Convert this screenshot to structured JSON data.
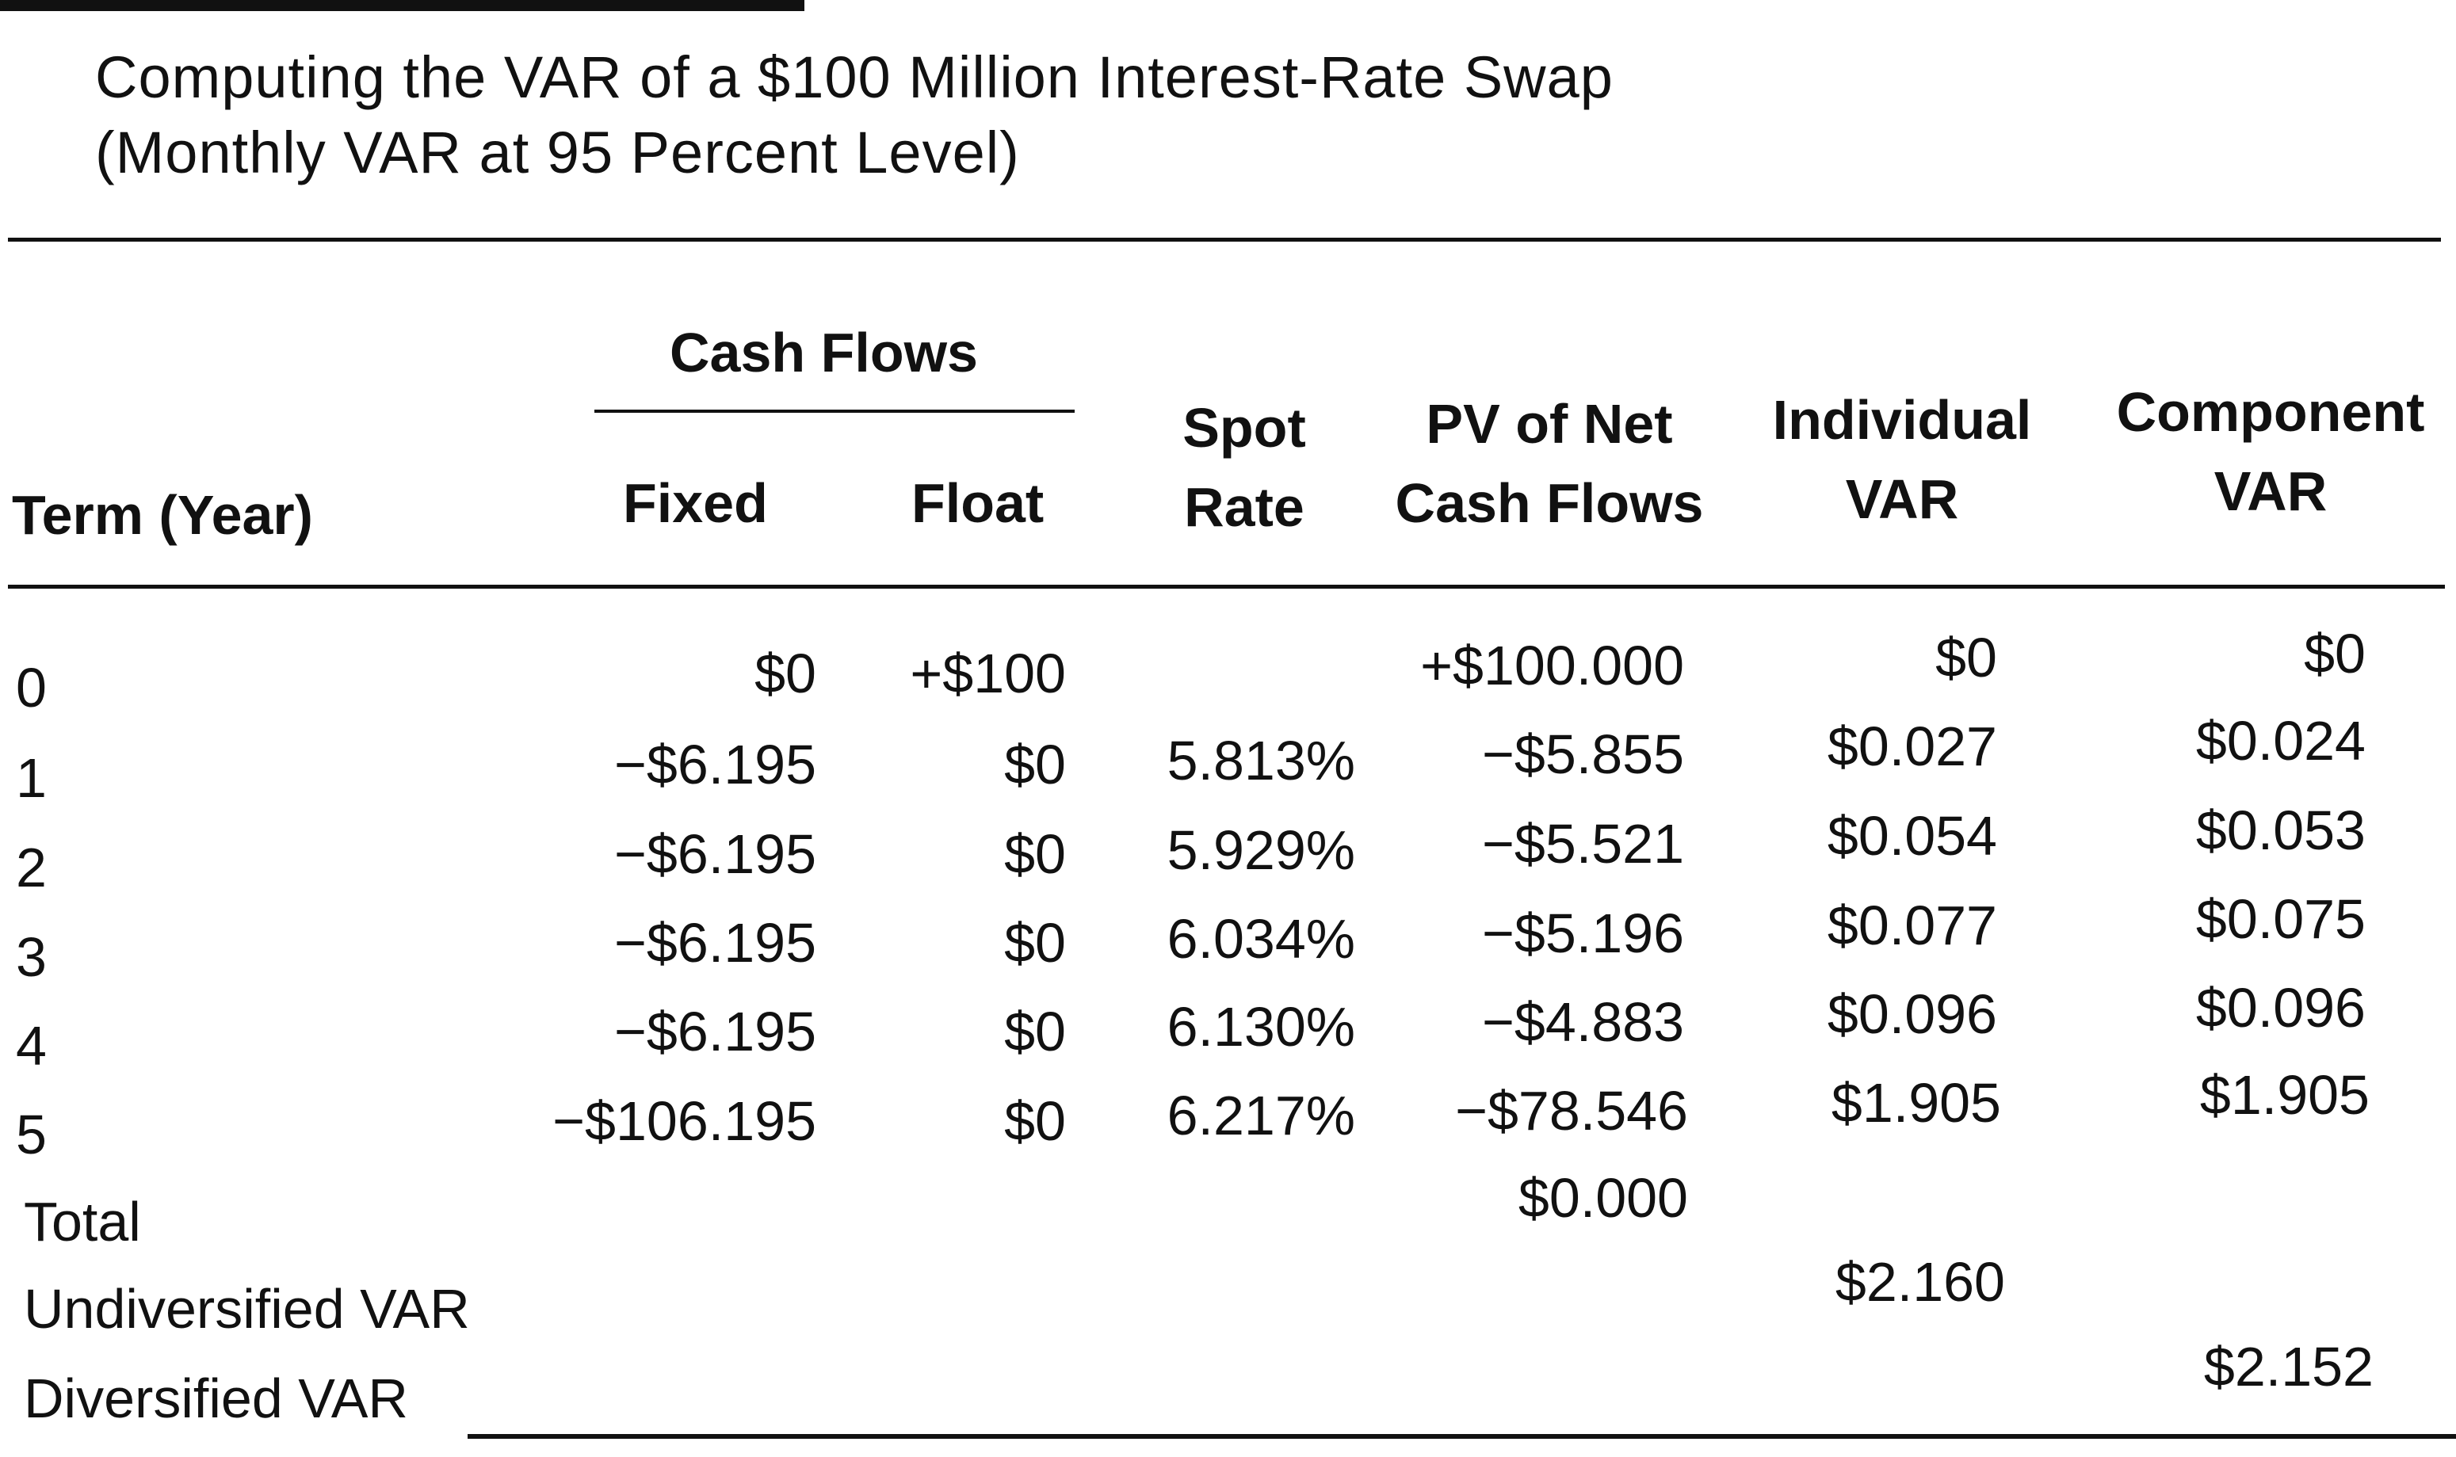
{
  "title": {
    "line1": "Computing the VAR of a $100 Million Interest-Rate Swap",
    "line2": "(Monthly VAR at 95 Percent Level)"
  },
  "headers": {
    "term": "Term (Year)",
    "cash_flows": "Cash Flows",
    "fixed": "Fixed",
    "float": "Float",
    "spot_rate_1": "Spot",
    "spot_rate_2": "Rate",
    "pv_1": "PV of Net",
    "pv_2": "Cash Flows",
    "ind_var_1": "Individual",
    "ind_var_2": "VAR",
    "comp_var_1": "Component",
    "comp_var_2": "VAR"
  },
  "rows": [
    {
      "term": "0",
      "fixed": "$0",
      "float": "+$100",
      "spot": "",
      "pv": "+$100.000",
      "ind": "$0",
      "comp": "$0"
    },
    {
      "term": "1",
      "fixed": "−$6.195",
      "float": "$0",
      "spot": "5.813%",
      "pv": "−$5.855",
      "ind": "$0.027",
      "comp": "$0.024"
    },
    {
      "term": "2",
      "fixed": "−$6.195",
      "float": "$0",
      "spot": "5.929%",
      "pv": "−$5.521",
      "ind": "$0.054",
      "comp": "$0.053"
    },
    {
      "term": "3",
      "fixed": "−$6.195",
      "float": "$0",
      "spot": "6.034%",
      "pv": "−$5.196",
      "ind": "$0.077",
      "comp": "$0.075"
    },
    {
      "term": "4",
      "fixed": "−$6.195",
      "float": "$0",
      "spot": "6.130%",
      "pv": "−$4.883",
      "ind": "$0.096",
      "comp": "$0.096"
    },
    {
      "term": "5",
      "fixed": "−$106.195",
      "float": "$0",
      "spot": "6.217%",
      "pv": "−$78.546",
      "ind": "$1.905",
      "comp": "$1.905"
    }
  ],
  "summary": {
    "total_label": "Total",
    "total_pv": "$0.000",
    "undiversified_label": "Undiversified VAR",
    "undiversified_value": "$2.160",
    "diversified_label": "Diversified VAR",
    "diversified_value": "$2.152"
  }
}
